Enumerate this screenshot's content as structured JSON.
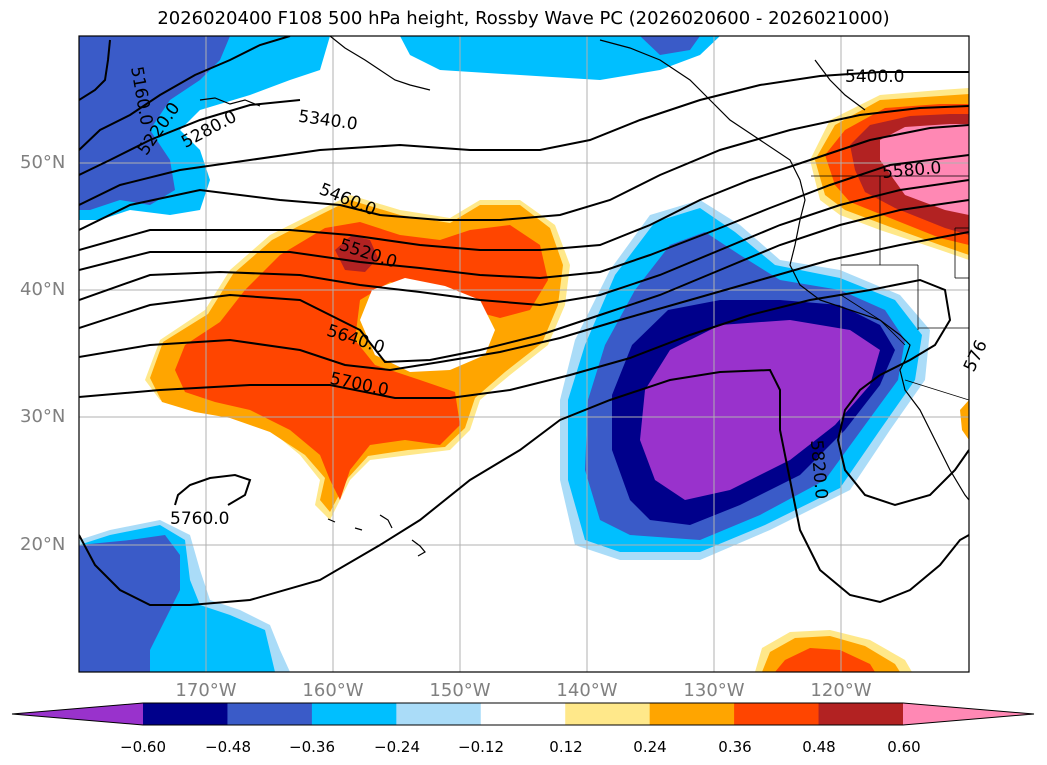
{
  "title": "2026020400 F108 500 hPa height, Rossby Wave PC (2026020600 - 2026021000)",
  "lat_labels": [
    "50°N",
    "40°N",
    "30°N",
    "20°N"
  ],
  "lon_labels": [
    "170°W",
    "160°W",
    "150°W",
    "140°W",
    "130°W",
    "120°W"
  ],
  "contour_labels": [
    "5160.0",
    "5220.0",
    "5280.0",
    "5340.0",
    "5400.0",
    "5460.0",
    "5520.0",
    "5580.0",
    "5640.0",
    "5700.0",
    "5760.0",
    "5820.0",
    "576"
  ],
  "colorbar": {
    "ticks": [
      "−0.60",
      "−0.48",
      "−0.36",
      "−0.24",
      "−0.12",
      "0.12",
      "0.24",
      "0.36",
      "0.48",
      "0.60"
    ],
    "colors": [
      "#9932cc",
      "#00008b",
      "#3a5bc8",
      "#00bfff",
      "#aadcf8",
      "#ffffff",
      "#ffe88a",
      "#ffa500",
      "#ff4500",
      "#b22222",
      "#ff88b4"
    ]
  },
  "colors": {
    "grid": "#b0b0b0",
    "coast": "#000000",
    "contour": "#000000"
  }
}
